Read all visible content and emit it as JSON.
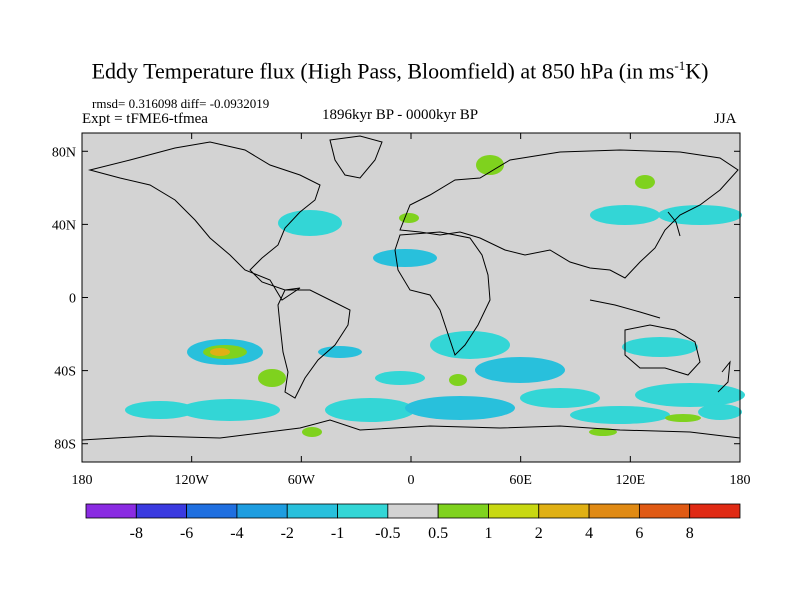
{
  "title": {
    "main": "Eddy Temperature flux (High Pass, Bloomfield) at 850 hPa (in ms",
    "sup": "-1",
    "end": "K)"
  },
  "stats": "rmsd= 0.316098 diff= -0.0932019",
  "experiment": "Expt = tFME6-tfmea",
  "period": "1896kyr BP - 0000kyr BP",
  "season": "JJA",
  "colors": {
    "ocean": "#d3d3d3",
    "land_outline": "#000000",
    "neg1": "#33d6d6",
    "neg2": "#28c0dc",
    "pos1": "#7fd21e",
    "pos2": "#c8d812",
    "pos3": "#e0b014"
  },
  "map": {
    "lon_range": [
      -180,
      180
    ],
    "lat_range": [
      -90,
      90
    ],
    "lat_ticks": [
      {
        "value": 80,
        "label": "80N"
      },
      {
        "value": 40,
        "label": "40N"
      },
      {
        "value": 0,
        "label": "0"
      },
      {
        "value": -40,
        "label": "40S"
      },
      {
        "value": -80,
        "label": "80S"
      }
    ],
    "lon_ticks": [
      {
        "value": -180,
        "label": "180"
      },
      {
        "value": -120,
        "label": "120W"
      },
      {
        "value": -60,
        "label": "60W"
      },
      {
        "value": 0,
        "label": "0"
      },
      {
        "value": 60,
        "label": "60E"
      },
      {
        "value": 120,
        "label": "120E"
      },
      {
        "value": 180,
        "label": "180"
      }
    ]
  },
  "colorbar": {
    "colors": [
      "#8a2be2",
      "#3a3ae0",
      "#1f6fe0",
      "#1e9de0",
      "#28c0dc",
      "#33d6d6",
      "#d3d3d3",
      "#7fd21e",
      "#c8d812",
      "#e0b014",
      "#e08a14",
      "#e05a14",
      "#e02a14"
    ],
    "labels": [
      "-8",
      "-6",
      "-4",
      "-2",
      "-1",
      "-0.5",
      "0.5",
      "1",
      "2",
      "4",
      "6",
      "8"
    ]
  }
}
